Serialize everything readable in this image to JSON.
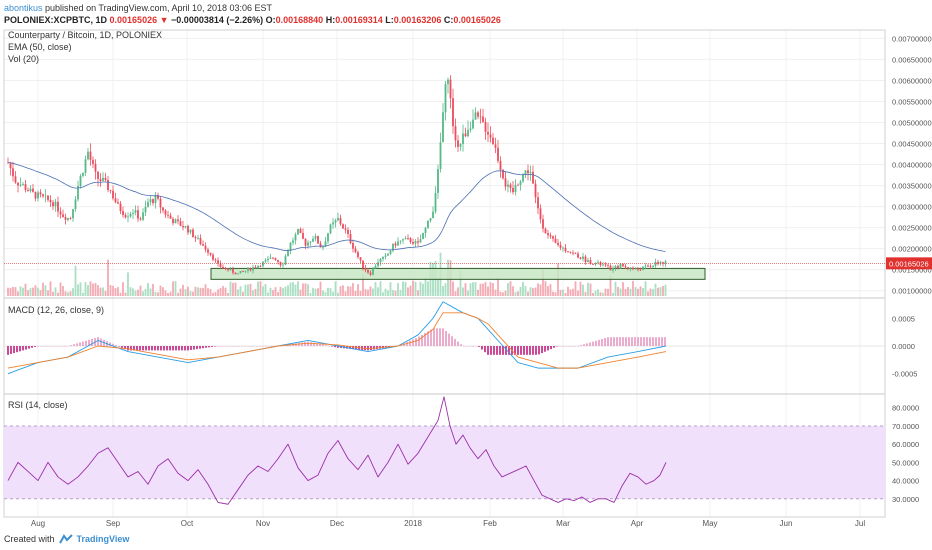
{
  "header": {
    "author": "abontikus",
    "published": " published on TradingView.com, April 10, 2018 03:06 EST"
  },
  "ohlc": {
    "symbol": "POLONIEX:XCPBTC, 1D",
    "last": "0.00165026",
    "arrow": "▼",
    "change": "−0.00003814 (−2.26%)",
    "o_label": "O:",
    "o": "0.00168840",
    "h_label": "H:",
    "h": "0.00169314",
    "l_label": "L:",
    "l": "0.00163206",
    "c_label": "C:",
    "c": "0.00165026"
  },
  "legend": {
    "title": "Counterparty / Bitcoin, 1D, POLONIEX",
    "ema": "EMA (50, close)",
    "vol": "Vol (20)",
    "macd": "MACD (12, 26, close, 9)",
    "rsi": "RSI (14, close)"
  },
  "footer": {
    "created": "Created with",
    "brand": "TradingView"
  },
  "colors": {
    "up": "#53b987",
    "down": "#eb4d5c",
    "ema": "#4a6fb3",
    "macd": "#2a9de8",
    "signal": "#f0822e",
    "rsi": "#9c2fa8",
    "rsi_band": "#f0e0fb",
    "support": "#c7e6c3",
    "price_line": "#e0312f"
  },
  "chart_data": [
    {
      "type": "candlestick",
      "title": "Counterparty / Bitcoin, 1D, POLONIEX",
      "ylim": [
        0.00085,
        0.0072
      ],
      "y_ticks": [
        "0.00700000",
        "0.00650000",
        "0.00600000",
        "0.00550000",
        "0.00500000",
        "0.00450000",
        "0.00400000",
        "0.00350000",
        "0.00300000",
        "0.00250000",
        "0.00200000",
        "0.00150000",
        "0.00100000"
      ],
      "y_tick_values": [
        0.007,
        0.0065,
        0.006,
        0.0055,
        0.005,
        0.0045,
        0.004,
        0.0035,
        0.003,
        0.0025,
        0.002,
        0.0015,
        0.001
      ],
      "x_labels": [
        "Aug",
        "Sep",
        "Oct",
        "Nov",
        "Dec",
        "2018",
        "Feb",
        "Mar",
        "Apr",
        "May",
        "Jun",
        "Jul"
      ],
      "current_price_label": "0.00165026",
      "current_price": 0.00165026,
      "support_zone": [
        0.00127,
        0.00153
      ],
      "close_path": [
        [
          0,
          0.00405
        ],
        [
          8,
          0.0036
        ],
        [
          15,
          0.0035
        ],
        [
          25,
          0.0033
        ],
        [
          35,
          0.0032
        ],
        [
          45,
          0.0031
        ],
        [
          55,
          0.0028
        ],
        [
          62,
          0.0027
        ],
        [
          70,
          0.0035
        ],
        [
          80,
          0.0043
        ],
        [
          88,
          0.0037
        ],
        [
          95,
          0.0036
        ],
        [
          102,
          0.0034
        ],
        [
          110,
          0.003
        ],
        [
          118,
          0.0028
        ],
        [
          125,
          0.0029
        ],
        [
          133,
          0.0027
        ],
        [
          140,
          0.0031
        ],
        [
          148,
          0.0032
        ],
        [
          155,
          0.0029
        ],
        [
          163,
          0.0027
        ],
        [
          170,
          0.0026
        ],
        [
          178,
          0.0025
        ],
        [
          186,
          0.0023
        ],
        [
          194,
          0.0021
        ],
        [
          202,
          0.0019
        ],
        [
          210,
          0.0016
        ],
        [
          220,
          0.0015
        ],
        [
          230,
          0.0014
        ],
        [
          240,
          0.0015
        ],
        [
          250,
          0.0016
        ],
        [
          258,
          0.0017
        ],
        [
          266,
          0.0018
        ],
        [
          274,
          0.0016
        ],
        [
          282,
          0.0021
        ],
        [
          290,
          0.0024
        ],
        [
          298,
          0.0021
        ],
        [
          306,
          0.0023
        ],
        [
          314,
          0.002
        ],
        [
          322,
          0.0025
        ],
        [
          330,
          0.0027
        ],
        [
          338,
          0.0024
        ],
        [
          346,
          0.002
        ],
        [
          354,
          0.0016
        ],
        [
          362,
          0.0014
        ],
        [
          370,
          0.0017
        ],
        [
          378,
          0.0018
        ],
        [
          386,
          0.0021
        ],
        [
          394,
          0.0022
        ],
        [
          402,
          0.0022
        ],
        [
          410,
          0.0021
        ],
        [
          418,
          0.0025
        ],
        [
          424,
          0.0028
        ],
        [
          430,
          0.0038
        ],
        [
          436,
          0.0055
        ],
        [
          440,
          0.0062
        ],
        [
          444,
          0.0051
        ],
        [
          450,
          0.0044
        ],
        [
          456,
          0.0047
        ],
        [
          462,
          0.005
        ],
        [
          468,
          0.0051
        ],
        [
          474,
          0.005
        ],
        [
          480,
          0.0048
        ],
        [
          486,
          0.0045
        ],
        [
          492,
          0.004
        ],
        [
          498,
          0.0035
        ],
        [
          504,
          0.0033
        ],
        [
          510,
          0.0036
        ],
        [
          516,
          0.0038
        ],
        [
          522,
          0.0039
        ],
        [
          528,
          0.0031
        ],
        [
          534,
          0.0026
        ],
        [
          540,
          0.0023
        ],
        [
          548,
          0.0021
        ],
        [
          556,
          0.002
        ],
        [
          564,
          0.0019
        ],
        [
          572,
          0.0018
        ],
        [
          580,
          0.0017
        ],
        [
          588,
          0.00165
        ],
        [
          596,
          0.0016
        ],
        [
          604,
          0.0015
        ],
        [
          612,
          0.0016
        ],
        [
          620,
          0.00155
        ],
        [
          628,
          0.0015
        ],
        [
          636,
          0.00155
        ],
        [
          644,
          0.0016
        ],
        [
          652,
          0.00168
        ],
        [
          658,
          0.00165
        ]
      ]
    },
    {
      "type": "line",
      "title": "MACD (12, 26, close, 9)",
      "ylim": [
        -0.00085,
        0.00085
      ],
      "y_ticks": [
        "0.0005",
        "0.0000",
        "-0.0005"
      ],
      "y_tick_values": [
        0.0005,
        0,
        -0.0005
      ],
      "series": [
        {
          "x": [
            0,
            30,
            60,
            90,
            120,
            150,
            180,
            210,
            240,
            270,
            300,
            330,
            360,
            390,
            410,
            425,
            435,
            445,
            455,
            470,
            480,
            495,
            510,
            530,
            550,
            570,
            600,
            630,
            658
          ],
          "values": [
            -0.0005,
            -0.0003,
            -0.0002,
            0.0001,
            -0.0001,
            -0.0002,
            -0.0003,
            -0.0002,
            -0.0001,
            0.0,
            0.0001,
            0.0,
            -0.0001,
            0.0,
            0.0002,
            0.0005,
            0.0008,
            0.0007,
            0.0006,
            0.0005,
            0.0003,
            0.0,
            -0.0003,
            -0.0004,
            -0.0004,
            -0.0004,
            -0.0002,
            -0.0001,
            0.0
          ]
        },
        {
          "x": [
            0,
            30,
            60,
            90,
            120,
            150,
            180,
            210,
            240,
            270,
            300,
            330,
            360,
            390,
            410,
            425,
            435,
            445,
            455,
            470,
            480,
            495,
            510,
            530,
            550,
            570,
            600,
            630,
            658
          ],
          "values": [
            -0.0004,
            -0.0003,
            -0.0002,
            0.0,
            -5e-05,
            -0.00015,
            -0.00025,
            -0.0002,
            -0.0001,
            0.0,
            5e-05,
            2e-05,
            -5e-05,
            0.0,
            0.0001,
            0.0003,
            0.0006,
            0.0006,
            0.0006,
            0.0005,
            0.0004,
            0.0001,
            -0.0002,
            -0.0003,
            -0.0004,
            -0.0004,
            -0.0003,
            -0.0002,
            -0.0001
          ]
        }
      ]
    },
    {
      "type": "line",
      "title": "RSI (14, close)",
      "ylim": [
        20,
        87
      ],
      "y_ticks": [
        "80.0000",
        "70.0000",
        "60.0000",
        "50.0000",
        "40.0000",
        "30.0000"
      ],
      "y_tick_values": [
        80,
        70,
        60,
        50,
        40,
        30
      ],
      "band": [
        30,
        70
      ],
      "series": [
        {
          "x": [
            0,
            10,
            20,
            30,
            40,
            50,
            60,
            70,
            80,
            90,
            100,
            110,
            120,
            130,
            140,
            150,
            160,
            170,
            180,
            190,
            200,
            210,
            220,
            230,
            240,
            250,
            260,
            270,
            280,
            290,
            300,
            310,
            320,
            330,
            340,
            350,
            360,
            370,
            380,
            390,
            400,
            410,
            420,
            430,
            436,
            442,
            448,
            455,
            462,
            470,
            478,
            486,
            494,
            502,
            510,
            518,
            526,
            534,
            542,
            550,
            558,
            566,
            574,
            582,
            590,
            598,
            606,
            614,
            622,
            630,
            638,
            646,
            652,
            658
          ],
          "values": [
            40,
            50,
            45,
            40,
            50,
            42,
            38,
            42,
            48,
            55,
            58,
            50,
            42,
            45,
            38,
            48,
            52,
            44,
            40,
            46,
            38,
            28,
            27,
            35,
            43,
            48,
            45,
            52,
            60,
            47,
            40,
            43,
            55,
            62,
            52,
            46,
            54,
            42,
            50,
            60,
            49,
            55,
            64,
            73,
            86,
            70,
            60,
            65,
            58,
            52,
            57,
            48,
            42,
            44,
            46,
            48,
            40,
            32,
            30,
            28,
            30,
            29,
            31,
            28,
            30,
            30,
            28,
            37,
            44,
            42,
            38,
            40,
            43,
            50
          ]
        }
      ]
    }
  ]
}
